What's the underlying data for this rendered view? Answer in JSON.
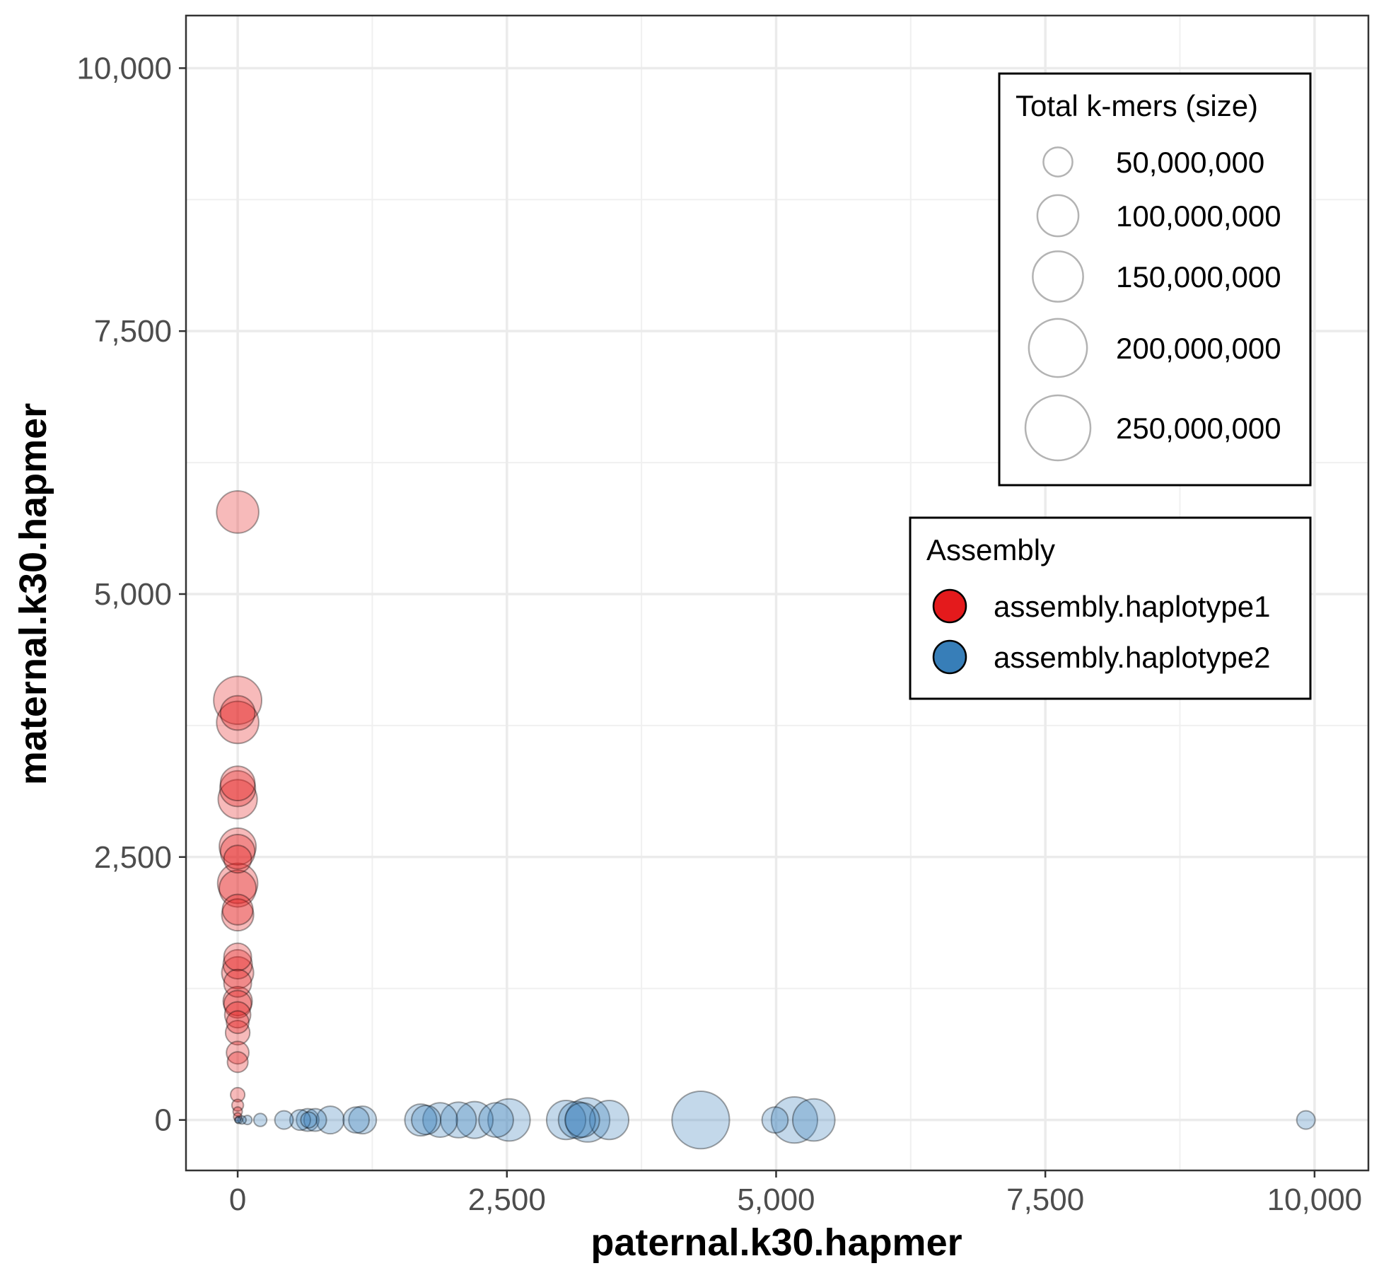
{
  "chart_data": {
    "type": "scatter",
    "xlabel": "paternal.k30.hapmer",
    "ylabel": "maternal.k30.hapmer",
    "xlim": [
      -480,
      10500
    ],
    "ylim": [
      -480,
      10500
    ],
    "x_ticks": [
      0,
      2500,
      5000,
      7500,
      10000
    ],
    "y_ticks": [
      0,
      2500,
      5000,
      7500,
      10000
    ],
    "x_tick_labels": [
      "0",
      "2,500",
      "5,000",
      "7,500",
      "10,000"
    ],
    "y_tick_labels": [
      "0",
      "2,500",
      "5,000",
      "7,500",
      "10,000"
    ],
    "grid": true,
    "size_legend": {
      "title": "Total k-mers (size)",
      "values": [
        50000000,
        100000000,
        150000000,
        200000000,
        250000000
      ],
      "labels": [
        "50,000,000",
        "100,000,000",
        "150,000,000",
        "200,000,000",
        "250,000,000"
      ]
    },
    "color_legend": {
      "title": "Assembly",
      "placement": "right",
      "entries": [
        {
          "name": "assembly.haplotype1",
          "color": "#E41A1C"
        },
        {
          "name": "assembly.haplotype2",
          "color": "#377EB8"
        }
      ]
    },
    "point_opacity": 0.3,
    "series": [
      {
        "name": "assembly.haplotype1",
        "color": "#E41A1C",
        "points": [
          {
            "x": 0,
            "y": 5780,
            "size": 105000000
          },
          {
            "x": 0,
            "y": 3990,
            "size": 136000000
          },
          {
            "x": 0,
            "y": 3870,
            "size": 70000000
          },
          {
            "x": 0,
            "y": 3780,
            "size": 105000000
          },
          {
            "x": 0,
            "y": 3200,
            "size": 70000000
          },
          {
            "x": 0,
            "y": 3150,
            "size": 75000000
          },
          {
            "x": 0,
            "y": 3050,
            "size": 90000000
          },
          {
            "x": 0,
            "y": 2600,
            "size": 80000000
          },
          {
            "x": 0,
            "y": 2550,
            "size": 70000000
          },
          {
            "x": 0,
            "y": 2480,
            "size": 45000000
          },
          {
            "x": 0,
            "y": 2250,
            "size": 95000000
          },
          {
            "x": 0,
            "y": 2200,
            "size": 80000000
          },
          {
            "x": 0,
            "y": 2000,
            "size": 55000000
          },
          {
            "x": 0,
            "y": 1950,
            "size": 60000000
          },
          {
            "x": 0,
            "y": 1550,
            "size": 45000000
          },
          {
            "x": 0,
            "y": 1480,
            "size": 50000000
          },
          {
            "x": 0,
            "y": 1400,
            "size": 60000000
          },
          {
            "x": 0,
            "y": 1300,
            "size": 45000000
          },
          {
            "x": 0,
            "y": 1130,
            "size": 50000000
          },
          {
            "x": 0,
            "y": 1100,
            "size": 45000000
          },
          {
            "x": 0,
            "y": 1000,
            "size": 40000000
          },
          {
            "x": 0,
            "y": 930,
            "size": 30000000
          },
          {
            "x": 0,
            "y": 830,
            "size": 35000000
          },
          {
            "x": 0,
            "y": 640,
            "size": 30000000
          },
          {
            "x": 0,
            "y": 550,
            "size": 25000000
          },
          {
            "x": 0,
            "y": 240,
            "size": 12000000
          },
          {
            "x": 0,
            "y": 140,
            "size": 8000000
          },
          {
            "x": 0,
            "y": 80,
            "size": 5000000
          },
          {
            "x": 0,
            "y": 30,
            "size": 4000000
          }
        ]
      },
      {
        "name": "assembly.haplotype2",
        "color": "#377EB8",
        "points": [
          {
            "x": 0,
            "y": 0,
            "size": 2000000
          },
          {
            "x": 10,
            "y": 0,
            "size": 3000000
          },
          {
            "x": 40,
            "y": 0,
            "size": 4000000
          },
          {
            "x": 90,
            "y": 0,
            "size": 5000000
          },
          {
            "x": 210,
            "y": 0,
            "size": 10000000
          },
          {
            "x": 430,
            "y": 0,
            "size": 20000000
          },
          {
            "x": 580,
            "y": 0,
            "size": 25000000
          },
          {
            "x": 650,
            "y": 0,
            "size": 30000000
          },
          {
            "x": 660,
            "y": 0,
            "size": 15000000
          },
          {
            "x": 720,
            "y": 0,
            "size": 30000000
          },
          {
            "x": 860,
            "y": 0,
            "size": 45000000
          },
          {
            "x": 1100,
            "y": 0,
            "size": 40000000
          },
          {
            "x": 1160,
            "y": 0,
            "size": 45000000
          },
          {
            "x": 1700,
            "y": 0,
            "size": 60000000
          },
          {
            "x": 1750,
            "y": 0,
            "size": 50000000
          },
          {
            "x": 1880,
            "y": 0,
            "size": 70000000
          },
          {
            "x": 2050,
            "y": 0,
            "size": 75000000
          },
          {
            "x": 2200,
            "y": 0,
            "size": 80000000
          },
          {
            "x": 2400,
            "y": 0,
            "size": 70000000
          },
          {
            "x": 2520,
            "y": 0,
            "size": 105000000
          },
          {
            "x": 3050,
            "y": 0,
            "size": 90000000
          },
          {
            "x": 3150,
            "y": 0,
            "size": 80000000
          },
          {
            "x": 3200,
            "y": 0,
            "size": 70000000
          },
          {
            "x": 3250,
            "y": 0,
            "size": 115000000
          },
          {
            "x": 3450,
            "y": 0,
            "size": 90000000
          },
          {
            "x": 4300,
            "y": 0,
            "size": 195000000
          },
          {
            "x": 4990,
            "y": 0,
            "size": 40000000
          },
          {
            "x": 5170,
            "y": 0,
            "size": 126000000
          },
          {
            "x": 5350,
            "y": 0,
            "size": 105000000
          },
          {
            "x": 9920,
            "y": 0,
            "size": 20000000
          }
        ]
      }
    ]
  }
}
